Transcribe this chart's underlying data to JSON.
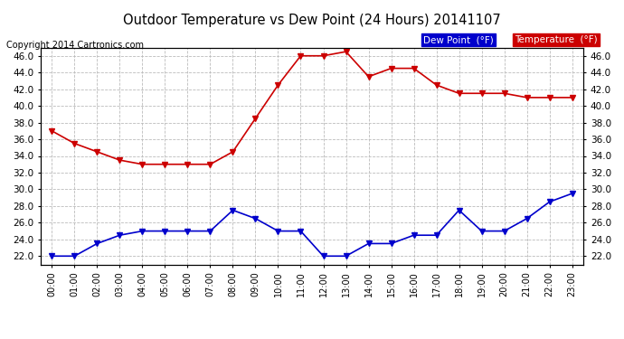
{
  "title": "Outdoor Temperature vs Dew Point (24 Hours) 20141107",
  "copyright": "Copyright 2014 Cartronics.com",
  "hours": [
    "00:00",
    "01:00",
    "02:00",
    "03:00",
    "04:00",
    "05:00",
    "06:00",
    "07:00",
    "08:00",
    "09:00",
    "10:00",
    "11:00",
    "12:00",
    "13:00",
    "14:00",
    "15:00",
    "16:00",
    "17:00",
    "18:00",
    "19:00",
    "20:00",
    "21:00",
    "22:00",
    "23:00"
  ],
  "temperature": [
    37.0,
    35.5,
    34.5,
    33.5,
    33.0,
    33.0,
    33.0,
    33.0,
    34.5,
    38.5,
    42.5,
    46.0,
    46.0,
    46.5,
    43.5,
    44.5,
    44.5,
    42.5,
    41.5,
    41.5,
    41.5,
    41.0,
    41.0,
    41.0
  ],
  "dew_point": [
    22.0,
    22.0,
    23.5,
    24.5,
    25.0,
    25.0,
    25.0,
    25.0,
    27.5,
    26.5,
    25.0,
    25.0,
    22.0,
    22.0,
    23.5,
    23.5,
    24.5,
    24.5,
    27.5,
    25.0,
    25.0,
    26.5,
    28.5,
    29.5
  ],
  "temp_color": "#cc0000",
  "dew_color": "#0000cc",
  "background_color": "#ffffff",
  "grid_color": "#bbbbbb",
  "legend_dew_bg": "#0000cc",
  "legend_temp_bg": "#cc0000",
  "yticks": [
    22.0,
    24.0,
    26.0,
    28.0,
    30.0,
    32.0,
    34.0,
    36.0,
    38.0,
    40.0,
    42.0,
    44.0,
    46.0
  ],
  "ylim": [
    21.0,
    47.0
  ]
}
